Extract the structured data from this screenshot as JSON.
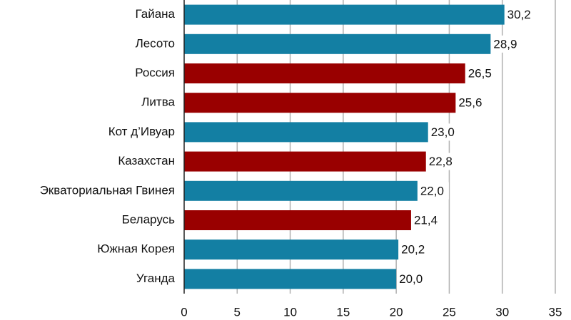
{
  "chart_data": {
    "type": "hbar",
    "categories": [
      "Гайана",
      "Лесото",
      "Россия",
      "Литва",
      "Кот д’Ивуар",
      "Казахстан",
      "Экваториальная Гвинея",
      "Беларусь",
      "Южная Корея",
      "Уганда"
    ],
    "values": [
      30.2,
      28.9,
      26.5,
      25.6,
      23.0,
      22.8,
      22.0,
      21.4,
      20.2,
      20.0
    ],
    "value_labels": [
      "30,2",
      "28,9",
      "26,5",
      "25,6",
      "23,0",
      "22,8",
      "22,0",
      "21,4",
      "20,2",
      "20,0"
    ],
    "colors": [
      "#137fa3",
      "#137fa3",
      "#990000",
      "#990000",
      "#137fa3",
      "#990000",
      "#137fa3",
      "#990000",
      "#137fa3",
      "#137fa3"
    ],
    "xlim": [
      0,
      35
    ],
    "xticks": [
      0,
      5,
      10,
      15,
      20,
      25,
      30,
      35
    ],
    "grid": true
  }
}
